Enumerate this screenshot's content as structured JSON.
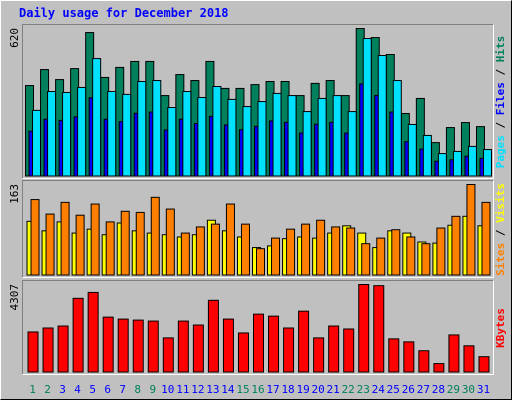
{
  "title": "Daily usage for December 2018",
  "chart_data": [
    {
      "type": "bar",
      "ylim": [
        0,
        620
      ],
      "yticks": [
        620
      ],
      "separator": "/",
      "series": [
        {
          "name": "Hits",
          "color": "#00805c",
          "values": [
            381,
            448,
            406,
            452,
            603,
            415,
            457,
            482,
            482,
            339,
            427,
            402,
            482,
            369,
            369,
            385,
            398,
            398,
            339,
            390,
            402,
            339,
            620,
            582,
            511,
            264,
            327,
            142,
            205,
            226,
            209
          ]
        },
        {
          "name": "Files",
          "color": "#0000ff",
          "values": [
            190,
            240,
            235,
            250,
            330,
            240,
            230,
            265,
            270,
            195,
            240,
            222,
            252,
            216,
            196,
            210,
            233,
            227,
            182,
            219,
            227,
            182,
            388,
            340,
            270,
            146,
            115,
            64,
            70,
            85,
            76
          ]
        },
        {
          "name": "Pages",
          "color": "#00e0ff",
          "values": [
            277,
            356,
            352,
            373,
            494,
            356,
            344,
            398,
            402,
            289,
            356,
            331,
            377,
            323,
            293,
            314,
            348,
            339,
            272,
            327,
            339,
            272,
            578,
            507,
            402,
            218,
            172,
            96,
            105,
            126,
            113
          ]
        }
      ]
    },
    {
      "type": "bar",
      "ylim": [
        0,
        163
      ],
      "yticks": [
        163
      ],
      "separator": "/",
      "series": [
        {
          "name": "Visits",
          "color": "#ffff00",
          "values": [
            97,
            80,
            96,
            76,
            83,
            73,
            94,
            80,
            76,
            73,
            69,
            73,
            99,
            80,
            69,
            50,
            53,
            66,
            69,
            67,
            76,
            89,
            76,
            50,
            80,
            76,
            60,
            58,
            90,
            106,
            89
          ]
        },
        {
          "name": "Sites",
          "color": "#ff8000",
          "values": [
            136,
            110,
            131,
            108,
            128,
            96,
            115,
            113,
            140,
            119,
            76,
            87,
            92,
            128,
            92,
            48,
            67,
            83,
            92,
            99,
            87,
            85,
            57,
            67,
            82,
            69,
            57,
            85,
            106,
            163,
            131
          ]
        }
      ]
    },
    {
      "type": "bar",
      "ylim": [
        0,
        4307
      ],
      "yticks": [
        4307
      ],
      "categories": [
        "1",
        "2",
        "3",
        "4",
        "5",
        "6",
        "7",
        "8",
        "9",
        "10",
        "11",
        "12",
        "13",
        "14",
        "15",
        "16",
        "17",
        "18",
        "19",
        "20",
        "21",
        "22",
        "23",
        "24",
        "25",
        "26",
        "27",
        "28",
        "29",
        "30",
        "31"
      ],
      "category_colors": [
        "#00805c",
        "#00805c",
        "#0000ff",
        "#0000ff",
        "#0000ff",
        "#0000ff",
        "#0000ff",
        "#00805c",
        "#00805c",
        "#0000ff",
        "#0000ff",
        "#0000ff",
        "#0000ff",
        "#0000ff",
        "#00805c",
        "#00805c",
        "#0000ff",
        "#0000ff",
        "#0000ff",
        "#0000ff",
        "#0000ff",
        "#00805c",
        "#00805c",
        "#0000ff",
        "#0000ff",
        "#0000ff",
        "#0000ff",
        "#0000ff",
        "#00805c",
        "#00805c",
        "#0000ff"
      ],
      "series": [
        {
          "name": "KBytes",
          "color": "#ff0000",
          "values": [
            1984,
            2178,
            2275,
            3630,
            3920,
            2710,
            2614,
            2565,
            2517,
            1694,
            2517,
            2323,
            3533,
            2614,
            1936,
            2856,
            2759,
            2178,
            3001,
            1694,
            2275,
            2130,
            4307,
            4250,
            1646,
            1500,
            1065,
            436,
            1839,
            1307,
            774
          ]
        }
      ]
    }
  ]
}
